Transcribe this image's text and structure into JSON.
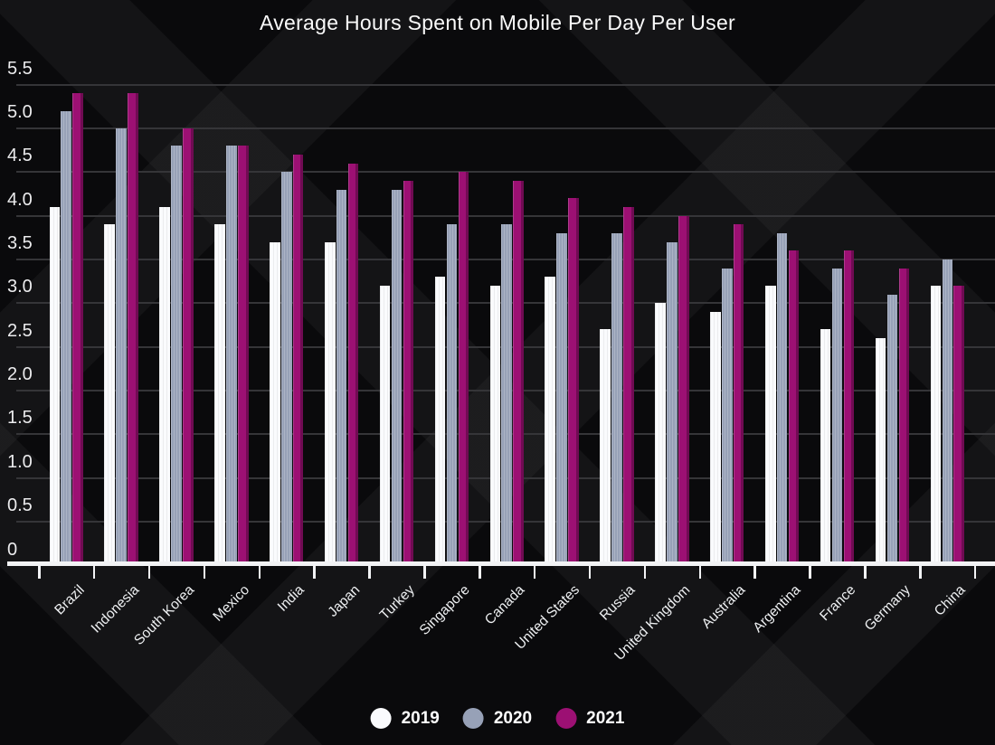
{
  "title": "Average Hours Spent on Mobile Per Day Per User",
  "chart_data": {
    "type": "bar",
    "title": "Average Hours Spent on Mobile Per Day Per User",
    "categories": [
      "Brazil",
      "Indonesia",
      "South Korea",
      "Mexico",
      "India",
      "Japan",
      "Turkey",
      "Singapore",
      "Canada",
      "United States",
      "Russia",
      "United Kingdom",
      "Australia",
      "Argentina",
      "France",
      "Germany",
      "China"
    ],
    "series": [
      {
        "name": "2019",
        "color": "#fafbfd",
        "values": [
          4.1,
          3.9,
          4.1,
          3.9,
          3.7,
          3.7,
          3.2,
          3.3,
          3.2,
          3.3,
          2.7,
          3.0,
          2.9,
          3.2,
          2.7,
          2.6,
          3.2
        ]
      },
      {
        "name": "2020",
        "color": "#97a1b7",
        "values": [
          5.2,
          5.0,
          4.8,
          4.8,
          4.5,
          4.3,
          4.3,
          3.9,
          3.9,
          3.8,
          3.8,
          3.7,
          3.4,
          3.8,
          3.4,
          3.1,
          3.5
        ]
      },
      {
        "name": "2021",
        "color": "#9c1073",
        "values": [
          5.4,
          5.4,
          5.0,
          4.8,
          4.7,
          4.6,
          4.4,
          4.5,
          4.4,
          4.2,
          4.1,
          4.0,
          3.9,
          3.6,
          3.6,
          3.4,
          3.2
        ]
      }
    ],
    "xlabel": "",
    "ylabel": "",
    "ylim": [
      0,
      5.5
    ],
    "yticks": [
      {
        "label": "0",
        "value": 0
      },
      {
        "label": "0.5",
        "value": 0.5
      },
      {
        "label": "1.0",
        "value": 1.0
      },
      {
        "label": "1.5",
        "value": 1.5
      },
      {
        "label": "2.0",
        "value": 2.0
      },
      {
        "label": "2.5",
        "value": 2.5
      },
      {
        "label": "3.0",
        "value": 3.0
      },
      {
        "label": "3.5",
        "value": 3.5
      },
      {
        "label": "4.0",
        "value": 4.0
      },
      {
        "label": "4.5",
        "value": 4.5
      },
      {
        "label": "5.0",
        "value": 5.0
      },
      {
        "label": "5.5",
        "value": 5.5
      }
    ],
    "grid": true,
    "legend_position": "bottom"
  },
  "legend": {
    "items": [
      {
        "label": "2019",
        "color": "#fafbfd"
      },
      {
        "label": "2020",
        "color": "#97a1b7"
      },
      {
        "label": "2021",
        "color": "#9c1073"
      }
    ]
  },
  "colors": {
    "background": "#0a0a0c",
    "pattern_stripe": "#17171a",
    "gridline": "#353538",
    "axis": "#f2f3f5",
    "text": "#fafafa"
  }
}
